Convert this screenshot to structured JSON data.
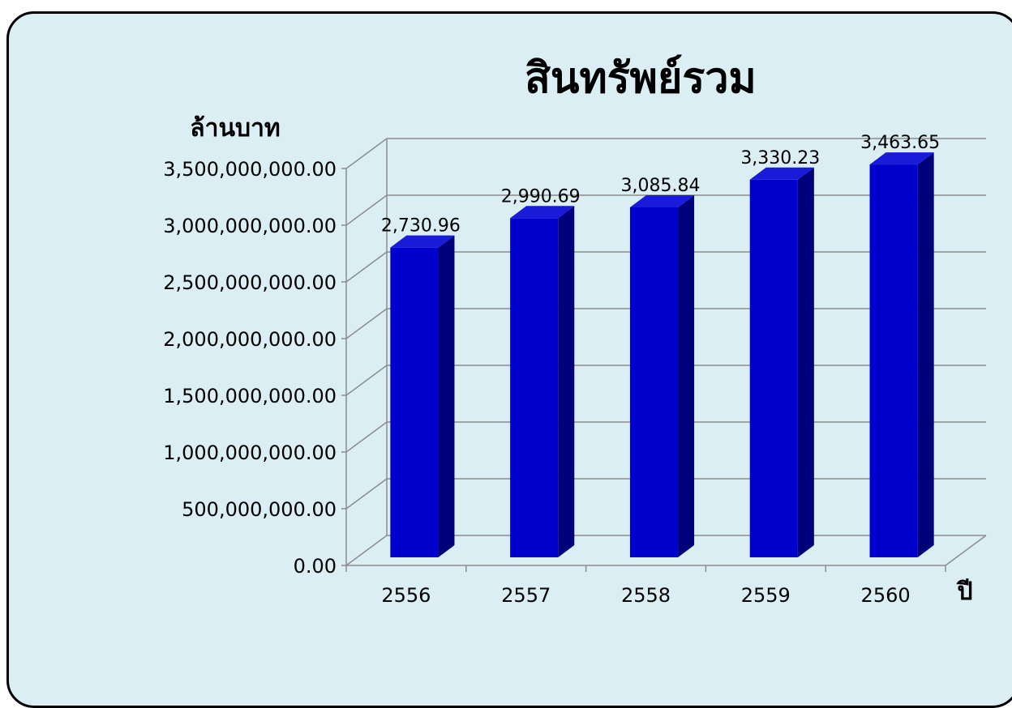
{
  "chart_data": {
    "type": "bar",
    "title": "สินทรัพย์รวม",
    "ylabel": "ล้านบาท",
    "xlabel": "ปี",
    "categories": [
      "2556",
      "2557",
      "2558",
      "2559",
      "2560"
    ],
    "values": [
      2730960000,
      2990690000,
      3085840000,
      3330230000,
      3463650000
    ],
    "data_labels": [
      "2,730.96",
      "2,990.69",
      "3,085.84",
      "3,330.23",
      "3,463.65"
    ],
    "y_ticks": [
      {
        "value": 0,
        "label": "0.00"
      },
      {
        "value": 500000000,
        "label": "500,000,000.00"
      },
      {
        "value": 1000000000,
        "label": "1,000,000,000.00"
      },
      {
        "value": 1500000000,
        "label": "1,500,000,000.00"
      },
      {
        "value": 2000000000,
        "label": "2,000,000,000.00"
      },
      {
        "value": 2500000000,
        "label": "2,500,000,000.00"
      },
      {
        "value": 3000000000,
        "label": "3,000,000,000.00"
      },
      {
        "value": 3500000000,
        "label": "3,500,000,000.00"
      }
    ],
    "ylim": [
      0,
      3500000000
    ],
    "grid": true,
    "legend": "none",
    "three_d": true,
    "colors": {
      "background": "#daeef4",
      "bar_front": "#0000cc",
      "bar_side": "#00007a",
      "bar_top": "#1a1ad9",
      "grid": "#8c8c8c"
    }
  }
}
